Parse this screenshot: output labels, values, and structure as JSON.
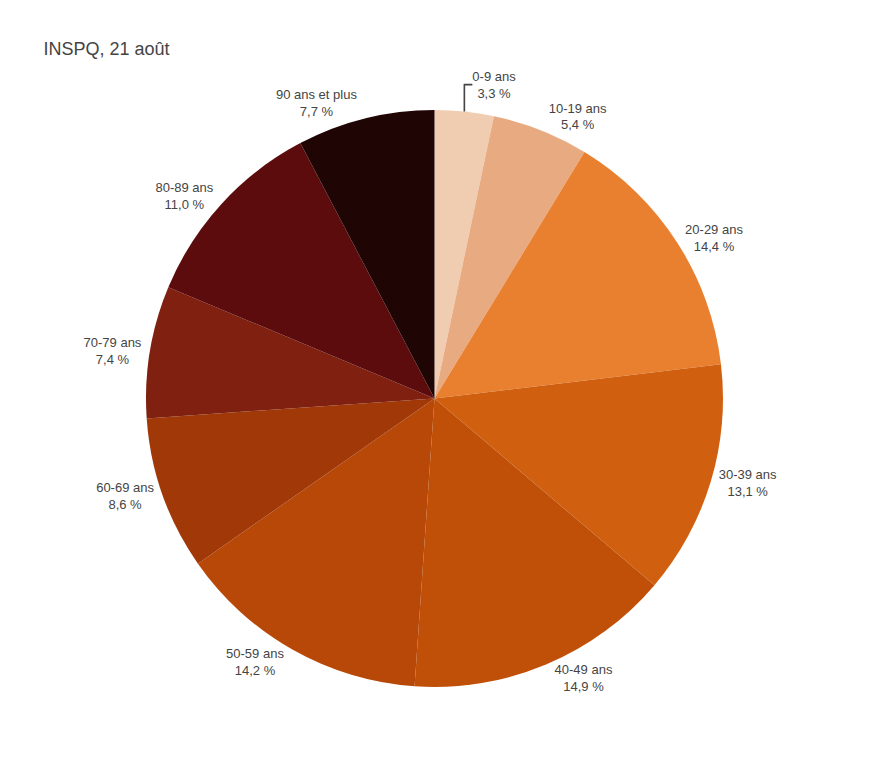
{
  "chart_data": {
    "type": "pie",
    "title": "INSPQ, 21 août",
    "categories": [
      "0-9 ans",
      "10-19 ans",
      "20-29 ans",
      "30-39 ans",
      "40-49 ans",
      "50-59 ans",
      "60-69 ans",
      "70-79 ans",
      "80-89 ans",
      "90 ans et plus"
    ],
    "values": [
      3.3,
      5.4,
      14.4,
      13.1,
      14.9,
      14.2,
      8.6,
      7.4,
      11.0,
      7.7
    ],
    "value_labels": [
      "3,3 %",
      "5,4 %",
      "14,4 %",
      "13,1 %",
      "14,9 %",
      "14,2 %",
      "8,6 %",
      "7,4 %",
      "11,0 %",
      "7,7 %"
    ],
    "colors": [
      "#f0cdb0",
      "#e8aa80",
      "#e88030",
      "#d06010",
      "#c05008",
      "#b84808",
      "#a03808",
      "#802010",
      "#5c0c0c",
      "#200505"
    ],
    "data_labels": true
  }
}
